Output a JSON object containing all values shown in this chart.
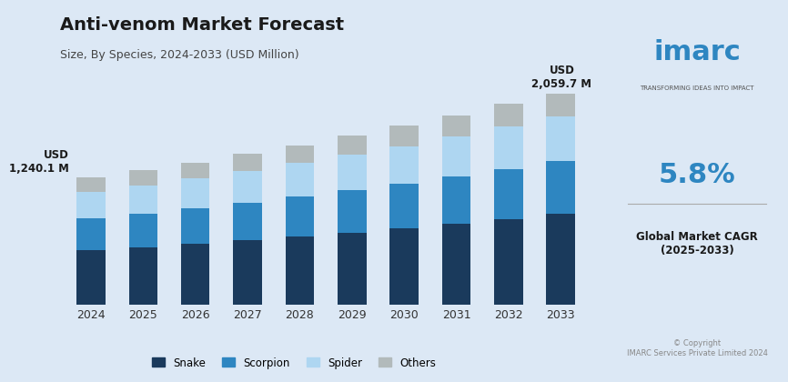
{
  "title": "Anti-venom Market Forecast",
  "subtitle": "Size, By Species, 2024-2033 (USD Million)",
  "years": [
    2024,
    2025,
    2026,
    2027,
    2028,
    2029,
    2030,
    2031,
    2032,
    2033
  ],
  "snake": [
    530,
    561,
    594,
    629,
    666,
    705,
    747,
    791,
    838,
    888
  ],
  "scorpion": [
    310,
    328,
    347,
    368,
    390,
    413,
    437,
    463,
    490,
    520
  ],
  "spider": [
    260,
    275,
    291,
    308,
    326,
    345,
    365,
    387,
    410,
    434
  ],
  "others": [
    140.1,
    148,
    157,
    166,
    176,
    187,
    198,
    210,
    222,
    217.7
  ],
  "first_label": "USD\n1,240.1 M",
  "last_label": "USD\n2,059.7 M",
  "colors": {
    "snake": "#1a3a5c",
    "scorpion": "#2e86c1",
    "spider": "#aed6f1",
    "others": "#b2babb"
  },
  "bg_color": "#dce8f5",
  "bar_width": 0.55,
  "ylim": [
    0,
    2400
  ],
  "legend_labels": [
    "Snake",
    "Scorpion",
    "Spider",
    "Others"
  ],
  "cagr_text": "5.8%",
  "cagr_label": "Global Market CAGR\n(2025-2033)"
}
